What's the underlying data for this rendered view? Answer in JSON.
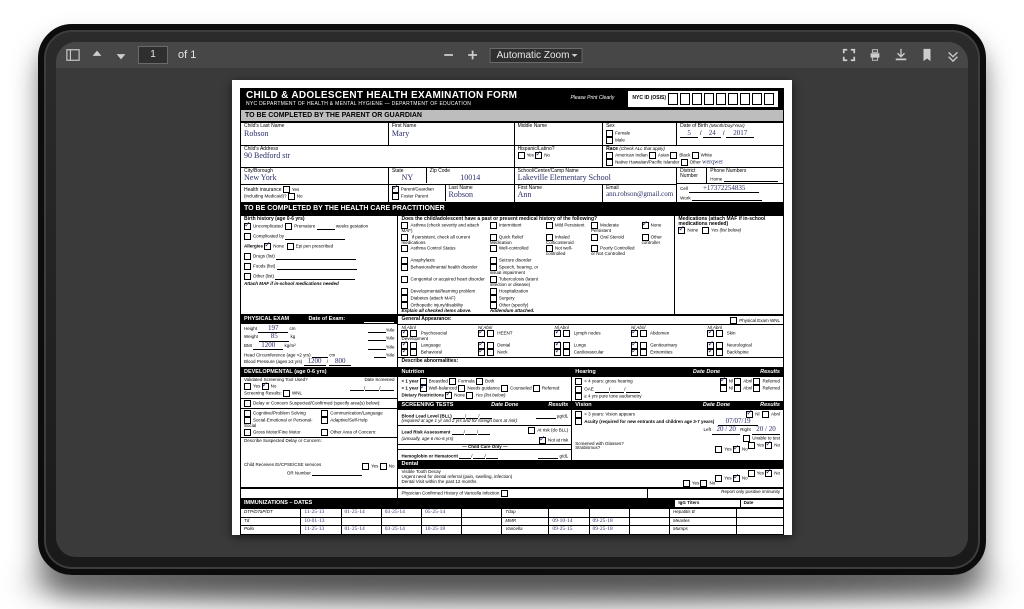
{
  "toolbar": {
    "page_current": "1",
    "page_total": "of 1",
    "zoom_label": "Automatic Zoom"
  },
  "form": {
    "header": {
      "title": "CHILD & ADOLESCENT HEALTH EXAMINATION FORM",
      "subtitle": "NYC DEPARTMENT OF HEALTH & MENTAL HYGIENE  —  DEPARTMENT OF EDUCATION",
      "please": "Please Print Clearly",
      "osis_label": "NYC ID (OSIS)"
    },
    "section1_title": "TO BE COMPLETED BY THE PARENT OR GUARDIAN",
    "child": {
      "last_label": "Child's Last Name",
      "last": "Robson",
      "first_label": "First Name",
      "first": "Mary",
      "middle_label": "Middle Name",
      "middle": "",
      "sex_label": "Sex",
      "sex_f": "Female",
      "sex_m": "Male",
      "dob_label": "Date of Birth",
      "dob_hint": "(Month/Day/Year)",
      "dob_m": "5",
      "dob_d": "24",
      "dob_y": "2017",
      "addr_label": "Child's Address",
      "addr": "90 Bedford str",
      "hisp_label": "Hispanic/Latino?",
      "yes": "Yes",
      "no": "No",
      "race_label": "Race",
      "race_hint": "(Check ALL that apply)",
      "race_ai": "American Indian",
      "race_as": "Asian",
      "race_bl": "Black",
      "race_wh": "White",
      "race_nh": "Native Hawaiian/Pacific Islander",
      "race_other": "Other",
      "race_other_val": "werqwer",
      "city_label": "City/Borough",
      "city": "New York",
      "state_label": "State",
      "state": "NY",
      "zip_label": "Zip Code",
      "zip": "10014",
      "school_label": "School/Center/Camp Name",
      "school": "Lakeville Elementary School",
      "district_label": "District Number",
      "phones_label": "Phone Numbers",
      "home": "Home",
      "cell": "Cell",
      "cell_val": "+17372254835",
      "work": "Work",
      "ins_label": "Health insurance",
      "ins_hint": "(including Medicaid)?",
      "pg_label": "Parent/Guardian",
      "fp_label": "Foster Parent",
      "pg_last_label": "Last Name",
      "pg_last": "Robson",
      "pg_first_label": "First Name",
      "pg_first": "Ann",
      "email_label": "Email",
      "email": "ann.robson@gmail.com"
    },
    "section2_title": "TO BE COMPLETED BY THE HEALTH CARE PRACTITIONER",
    "birth": {
      "title": "Birth history (age 0-6 yrs)",
      "uncomp": "Uncomplicated",
      "prem": "Premature",
      "weeks": "weeks gestation",
      "comp": "Complicated by",
      "allergies": "Allergies",
      "none": "None",
      "epi": "Epi pen prescribed",
      "drugs": "Drugs (list)",
      "foods": "Foods (list)",
      "other": "Other (list)",
      "maf": "Attach MAF if in-school medications needed"
    },
    "history": {
      "title": "Does the child/adolescent have a past or present medical history of the following?",
      "items_l": [
        "Asthma (check severity and attach MAF)",
        "  if persistent, check all current medications",
        "Asthma Control Status",
        "Anaphylaxis",
        "Behavioral/mental health disorder",
        "Congenital or acquired heart disorder",
        "Developmental/learning problem",
        "Diabetes (attach MAF)",
        "Orthopedic injury/disability",
        "Explain all checked items above."
      ],
      "items_m": [
        "Intermittent",
        "Quick Relief Medication",
        "Well-controlled",
        "Seizure disorder",
        "Speech, hearing, or visual impairment",
        "Tuberculosis (latent infection or disease)",
        "Hospitalization",
        "Surgery",
        "Other (specify)",
        "Addendum attached."
      ],
      "items_r": [
        "Mild Persistent",
        "Inhaled Corticosteroid",
        "Not well-controlled",
        "",
        "",
        "",
        "",
        "",
        "",
        ""
      ],
      "items_r2": [
        "Moderate Persistent",
        "Oral Steroid",
        "Poorly Controlled or Not Controlled",
        "",
        "",
        "",
        "",
        "",
        "",
        ""
      ],
      "items_r3": [
        "Severe Persistent",
        "Other controller",
        "",
        "",
        "",
        "",
        "",
        "",
        "",
        ""
      ],
      "none_on": "None",
      "meds_title": "Medications (attach MAF if in-school medications needed)",
      "meds_none": "None",
      "meds_yes": "Yes (list below)"
    },
    "exam": {
      "title": "PHYSICAL EXAM",
      "date": "Date of Exam:",
      "height_l": "Height",
      "height": "197",
      "height_u": "cm",
      "height_p": "%ile",
      "weight_l": "Weight",
      "weight": "85",
      "weight_u": "kg",
      "weight_p": "%ile",
      "bmi_l": "BMI",
      "bmi": "1200",
      "bmi_u": "kg/m²",
      "bmi_p": "%ile",
      "hc_l": "Head Circumference (age <2 yrs)",
      "hc_u": "cm",
      "hc_p": "%ile",
      "bp_l": "Blood Pressure (ages ≥3 yrs)",
      "bp_s": "1200",
      "bp_d": "800",
      "ga_title": "General Appearance:",
      "cols": [
        "Nl   Abnl",
        "Nl   Abnl",
        "Nl   Abnl",
        "Nl   Abnl",
        "Nl   Abnl"
      ],
      "rows": [
        [
          "Psychosocial Development",
          "HEENT",
          "Lymph nodes",
          "Abdomen",
          "Skin"
        ],
        [
          "Language",
          "Dental",
          "Lungs",
          "Genitourinary",
          "Neurological"
        ],
        [
          "Behavioral",
          "Neck",
          "Cardiovascular",
          "Extremities",
          "Back/spine"
        ]
      ],
      "pe_wnl": "Physical Exam WNL",
      "desc": "Describe abnormalities:"
    },
    "dev": {
      "title": "DEVELOPMENTAL (age 0-6 yrs)",
      "tool": "Validated Screening Tool Used?",
      "date": "Date Screened",
      "res": "Screening Results:",
      "wnl": "WNL",
      "delay": "Delay or Concern Suspected/Confirmed (specify area(s) below):",
      "items": [
        "Cognitive/Problem Solving",
        "Communication/Language",
        "Social-Emotional or Personal-Social",
        "Adaptive/Self-Help",
        "Gross Motor/Fine Motor",
        "Other Area of Concern:"
      ],
      "desc2": "Describe Suspected Delay or Concern:",
      "ei": "Child Receives EI/CPSE/CSE services",
      "or": "OR Number"
    },
    "nutrition": {
      "title": "Nutrition",
      "lt1": "< 1 year",
      "bf": "Breastfed",
      "fo": "Formula",
      "both": "Both",
      "gt1": "> 1 year",
      "wb": "Well-balanced",
      "ng": "Needs guidance",
      "co": "Counseled",
      "ref": "Referred",
      "diet": "Dietary Restrictions",
      "diet_none": "None",
      "diet_yes": "Yes (list below)"
    },
    "hearing": {
      "title": "Hearing",
      "dd": "Date Done",
      "res": "Results",
      "lt4": "< 4 years: gross hearing",
      "oae": "OAE",
      "gt4": "≥ 4 yrs pure tone audiometry",
      "nl": "Nl",
      "abn": "Abnl",
      "refd": "Referred"
    },
    "screen": {
      "title": "SCREENING TESTS",
      "dd": "Date Done",
      "res": "Results",
      "bll": "Blood Lead Level (BLL)",
      "bll_hint": "(required at age 1 yr and 2 yrs and for foreign born at risk)",
      "bll_u": "µg/dL",
      "lra": "Lead Risk Assessment",
      "lra_hint": "(annually, age 6 mo-6 yrs)",
      "risk": "At risk (do BLL)",
      "notrisk": "Not at risk",
      "cco": "Child Care Only",
      "hgb": "Hemoglobin or Hematocrit",
      "hgb_u": "g/dL"
    },
    "vision": {
      "title": "Vision",
      "dd": "Date Done",
      "res": "Results",
      "lt3": "< 3 years: Vision appears",
      "acuity": "Acuity (required for new entrants and children age 3-7 years)",
      "date": "07/07/19",
      "r": "Right",
      "l": "Left",
      "rv": "20 / 20",
      "lv": "20 / 20",
      "glasses": "Screened with Glasses?",
      "strab": "Strabismus?",
      "unable": "Unable to test",
      "nl": "Nl",
      "abn": "Abnl"
    },
    "dental": {
      "title": "Dental",
      "decay": "Visible Tooth Decay",
      "ref": "Urgent need for dental referral (pain, swelling, infection)",
      "visit": "Dental Visit within the past 12 months"
    },
    "varicella": "Physician Confirmed History of Varicella Infection",
    "immun": {
      "title": "IMMUNIZATIONS – DATES",
      "note": "Report only positive immunity",
      "titers": "IgG Titers",
      "tdate": "Date",
      "rows": [
        {
          "n": "DTP/DTaP/DT",
          "d": [
            "11·25·13",
            "01·25·14",
            "03·25·14",
            "05·25·14",
            "",
            ""
          ]
        },
        {
          "n": "Td",
          "d": [
            "10·01·13",
            "",
            "",
            "",
            "",
            ""
          ]
        },
        {
          "n": "Polio",
          "d": [
            "11·25·13",
            "01·25·14",
            "03·25·14",
            "10·25·18",
            "",
            ""
          ]
        }
      ],
      "mid": [
        {
          "n": "Tdap",
          "d": [
            "",
            "",
            "",
            "",
            "",
            ""
          ]
        },
        {
          "n": "MMR",
          "d": [
            "09·10·14",
            "09·25·18",
            "",
            "",
            "",
            ""
          ]
        },
        {
          "n": "Varicella",
          "d": [
            "09·25·15",
            "09·25·18",
            "",
            "",
            "",
            ""
          ]
        }
      ],
      "right": [
        "Hepatitis B",
        "Measles",
        "Mumps"
      ]
    }
  }
}
